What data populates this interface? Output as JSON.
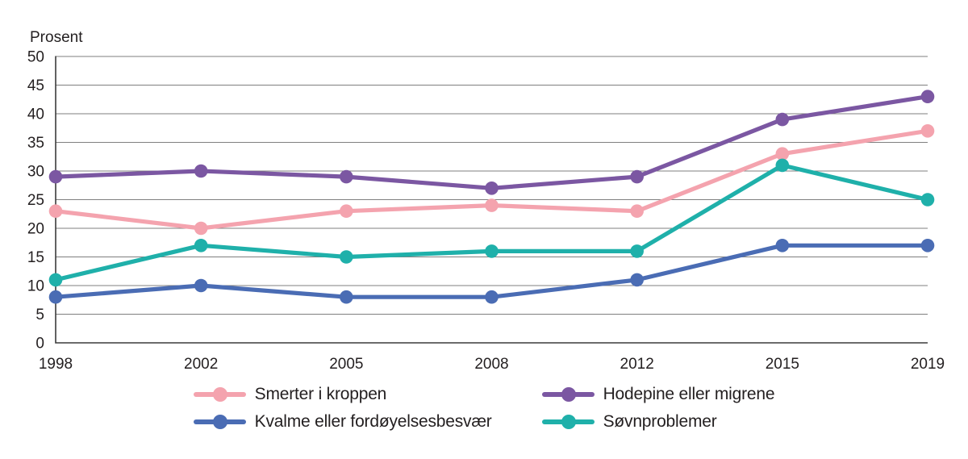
{
  "chart_data": {
    "type": "line",
    "y_axis_label": "Prosent",
    "categories": [
      "1998",
      "2002",
      "2005",
      "2008",
      "2012",
      "2015",
      "2019"
    ],
    "series": [
      {
        "name": "Smerter i kroppen",
        "color": "#F4A3AE",
        "values": [
          23,
          20,
          23,
          24,
          23,
          33,
          37
        ]
      },
      {
        "name": "Hodepine eller migrene",
        "color": "#7B57A2",
        "values": [
          29,
          30,
          29,
          27,
          29,
          39,
          43
        ]
      },
      {
        "name": "Kvalme eller fordøyelsesbesvær",
        "color": "#4A6CB4",
        "values": [
          8,
          10,
          8,
          8,
          11,
          17,
          17
        ]
      },
      {
        "name": "Søvnproblemer",
        "color": "#1FB0AA",
        "values": [
          11,
          17,
          15,
          16,
          16,
          31,
          25
        ]
      }
    ],
    "ylim": [
      0,
      50
    ],
    "y_tick_step": 5,
    "grid": true,
    "legend_position": "bottom",
    "legend_columns": 2,
    "grid_color": "#7F7F7F",
    "axis_color": "#3B3B3B",
    "text_color": "#231F20"
  }
}
